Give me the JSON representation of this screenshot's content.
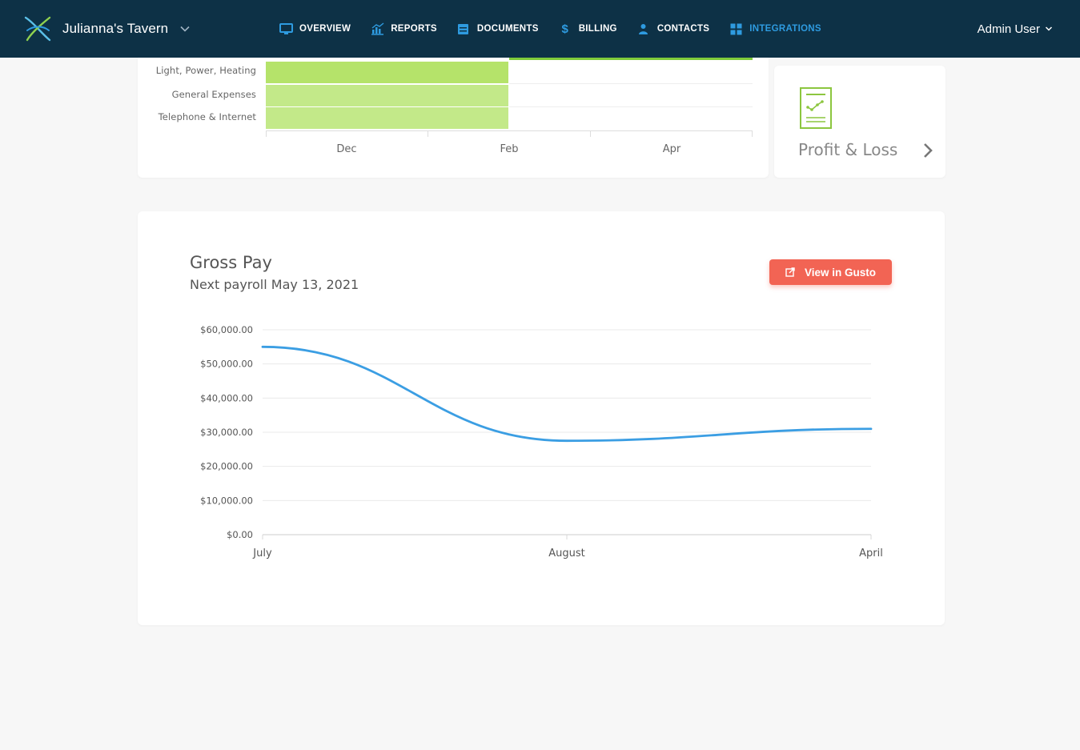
{
  "app": {
    "brand_name": "Julianna's Tavern",
    "user_name": "Admin User"
  },
  "nav": {
    "items": [
      {
        "label": "OVERVIEW",
        "icon": "monitor-icon",
        "active": false
      },
      {
        "label": "REPORTS",
        "icon": "chart-icon",
        "active": false
      },
      {
        "label": "DOCUMENTS",
        "icon": "archive-icon",
        "active": false
      },
      {
        "label": "BILLING",
        "icon": "dollar-icon",
        "active": false
      },
      {
        "label": "CONTACTS",
        "icon": "contacts-icon",
        "active": false
      },
      {
        "label": "INTEGRATIONS",
        "icon": "grid-icon",
        "active": true
      }
    ]
  },
  "colors": {
    "topbar": "#0d3146",
    "nav_active": "#2e9be0",
    "bar_green_dark": "#b5e36a",
    "bar_green_light": "#c3e989",
    "line_blue": "#3b9ee3",
    "gusto_button": "#f26454"
  },
  "expense_chart": {
    "categories": [
      "Light, Power, Heating",
      "General Expenses",
      "Telephone & Internet"
    ],
    "x_tick_labels": [
      "Dec",
      "Feb",
      "Apr"
    ]
  },
  "profit_loss": {
    "title": "Profit & Loss",
    "icon": "report-icon"
  },
  "gross_pay": {
    "title": "Gross Pay",
    "subtitle": "Next payroll May 13, 2021",
    "button_label": "View in Gusto"
  },
  "chart_data": {
    "type": "line",
    "x": [
      "July",
      "August",
      "April"
    ],
    "values": [
      55000,
      27500,
      31000
    ],
    "ylim": [
      0,
      60000
    ],
    "y_ticks": [
      0,
      10000,
      20000,
      30000,
      40000,
      50000,
      60000
    ],
    "y_tick_labels": [
      "$0.00",
      "$10,000.00",
      "$20,000.00",
      "$30,000.00",
      "$40,000.00",
      "$50,000.00",
      "$60,000.00"
    ],
    "grid": true,
    "smooth": true
  }
}
